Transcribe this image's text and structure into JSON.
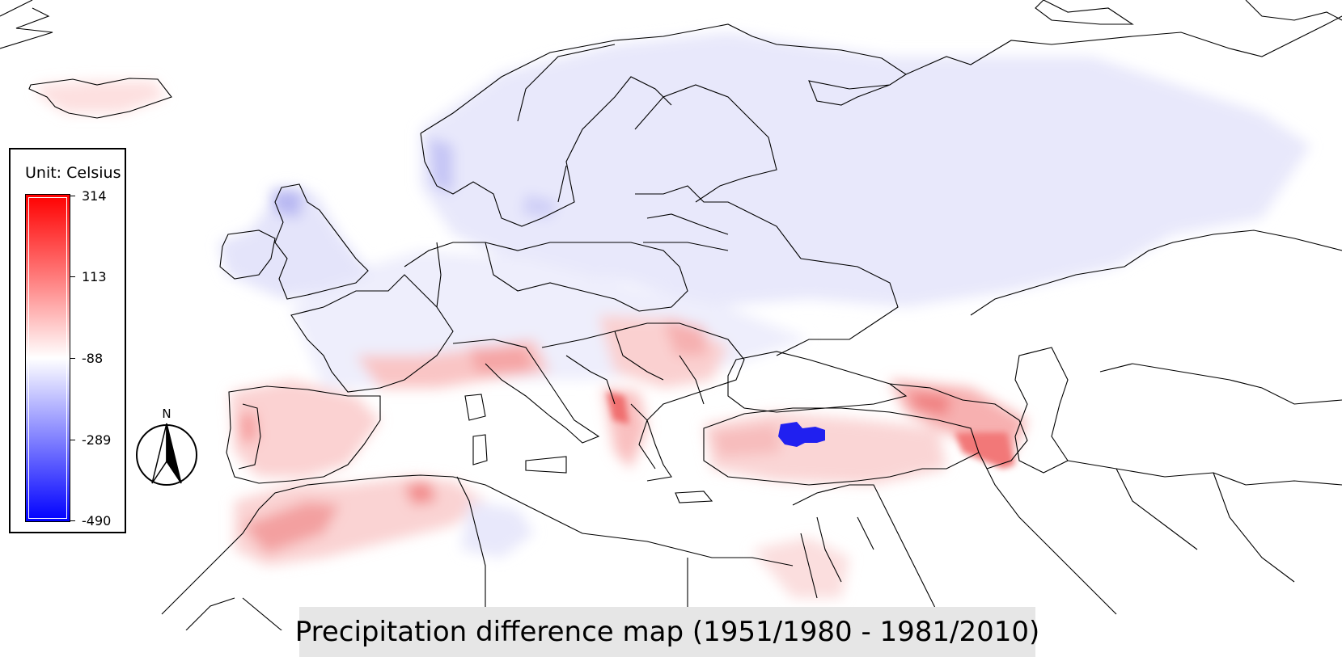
{
  "map": {
    "title": "Precipitation difference map (1951/1980 - 1981/2010)",
    "legend": {
      "unit_label": "Unit: Celsius",
      "ticks": [
        "314",
        "113",
        "-88",
        "-289",
        "-490"
      ],
      "colormap": {
        "max_color": "#ff0000",
        "mid_color": "#ffffff",
        "min_color": "#0000ff"
      }
    },
    "north_arrow_label": "N"
  }
}
